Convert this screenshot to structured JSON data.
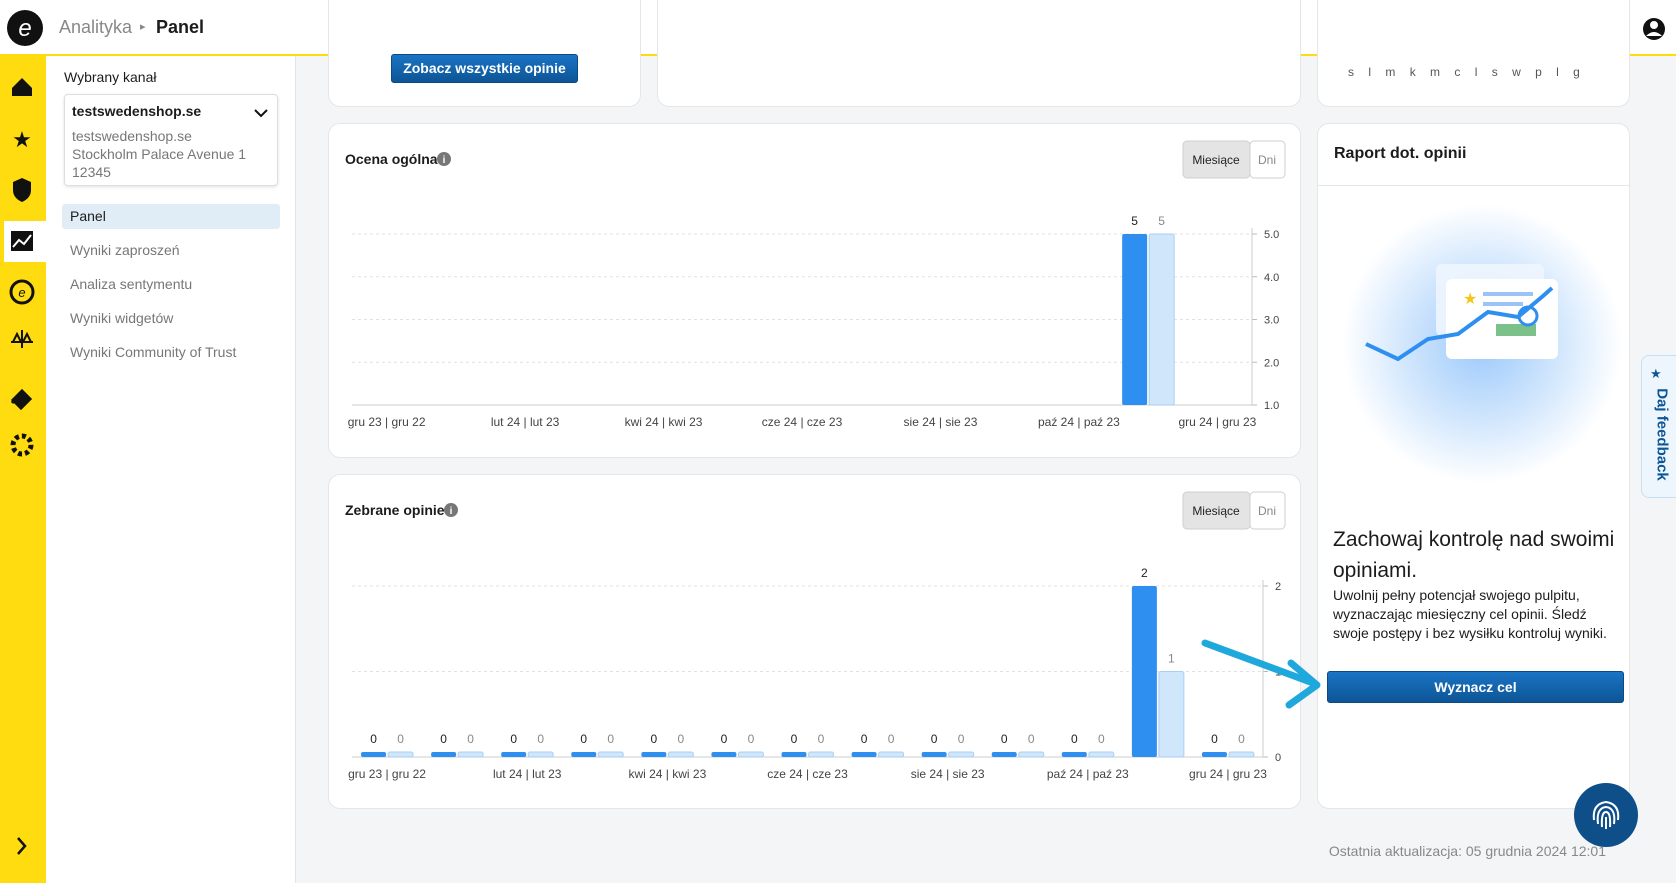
{
  "header": {
    "section": "Analityka",
    "title": "Panel"
  },
  "sidebar": {
    "channel_label": "Wybrany kanał",
    "channel_name": "testswedenshop.se",
    "channel_address": [
      "testswedenshop.se",
      "Stockholm Palace Avenue 1",
      "12345"
    ],
    "menu": [
      "Panel",
      "Wyniki zaproszeń",
      "Analiza sentymentu",
      "Wyniki widgetów",
      "Wyniki Community of Trust"
    ]
  },
  "top_cards": {
    "button": "Zobacz wszystkie opinie",
    "day_letters": [
      "s",
      "l",
      "m",
      "k",
      "m",
      "c",
      "l",
      "s",
      "w",
      "p",
      "l",
      "g"
    ]
  },
  "charts": [
    {
      "type": "bar",
      "title": "Ocena ogólna",
      "toggle": [
        "Miesiące",
        "Dni"
      ],
      "categories": [
        "gru 23 | gru 22",
        null,
        "lut 24 | lut 23",
        null,
        "kwi 24 | kwi 23",
        null,
        "cze 24 | cze 23",
        null,
        "sie 24 | sie 23",
        null,
        "paź 24 | paź 23",
        null,
        "gru 24 | gru 23"
      ],
      "series": [
        {
          "color": "#2e8ff0",
          "values": [
            null,
            null,
            null,
            null,
            null,
            null,
            null,
            null,
            null,
            null,
            null,
            5,
            null
          ]
        },
        {
          "color": "#cfe6fb",
          "values": [
            null,
            null,
            null,
            null,
            null,
            null,
            null,
            null,
            null,
            null,
            null,
            5,
            null
          ]
        }
      ],
      "ylim": [
        1,
        5
      ],
      "yticks": [
        {
          "value": 1,
          "label": "1.0"
        },
        {
          "value": 2,
          "label": "2.0"
        },
        {
          "value": 3,
          "label": "3.0"
        },
        {
          "value": 4,
          "label": "4.0"
        },
        {
          "value": 5,
          "label": "5.0"
        }
      ],
      "grid": true
    },
    {
      "type": "bar",
      "title": "Zebrane opinie",
      "toggle": [
        "Miesiące",
        "Dni"
      ],
      "categories": [
        "gru 23 | gru 22",
        null,
        "lut 24 | lut 23",
        null,
        "kwi 24 | kwi 23",
        null,
        "cze 24 | cze 23",
        null,
        "sie 24 | sie 23",
        null,
        "paź 24 | paź 23",
        null,
        "gru 24 | gru 23"
      ],
      "series": [
        {
          "color": "#2e8ff0",
          "values": [
            0,
            0,
            0,
            0,
            0,
            0,
            0,
            0,
            0,
            0,
            0,
            2,
            0
          ]
        },
        {
          "color": "#cfe6fb",
          "values": [
            0,
            0,
            0,
            0,
            0,
            0,
            0,
            0,
            0,
            0,
            0,
            1,
            0
          ]
        }
      ],
      "ylim": [
        0,
        2
      ],
      "yticks": [
        0,
        1,
        2
      ],
      "grid": true
    }
  ],
  "report": {
    "title": "Raport dot. opinii",
    "heading": "Zachowaj kontrolę nad swoimi opiniami.",
    "text": "Uwolnij pełny potencjał swojego pulpitu, wyznaczając miesięczny cel opinii. Śledź swoje postępy i bez wysiłku kontroluj wyniki.",
    "button": "Wyznacz cel"
  },
  "feedback_tab": "Daj feedback",
  "footer": "Ostatnia aktualizacja: 05 grudnia 2024 12:01"
}
